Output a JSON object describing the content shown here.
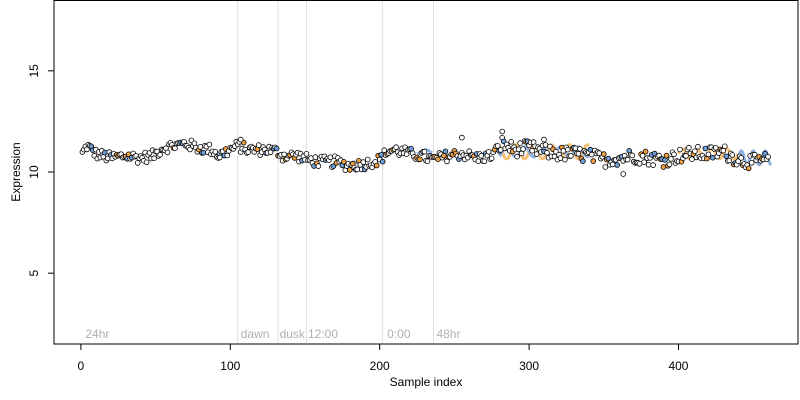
{
  "chart_data": {
    "type": "scatter",
    "title": "",
    "xlabel": "Sample index",
    "ylabel": "Expression",
    "xlim": [
      -18,
      480
    ],
    "ylim": [
      1.5,
      18.5
    ],
    "xticks": [
      0,
      100,
      200,
      300,
      400
    ],
    "yticks": [
      5,
      10,
      15
    ],
    "grid": false,
    "legend": "none",
    "colors": {
      "point_fill": "#ffffff",
      "point_stroke": "#000000",
      "orange_fill": "#f0a040",
      "blue_fill": "#6f9fd8",
      "vline": "#e0e0e0",
      "annotation": "#b0b0b0",
      "fit_orange": "#f5b561",
      "fit_blue": "#7fa6dc"
    },
    "vlines": [
      105,
      132,
      151,
      202,
      236
    ],
    "annotations": [
      {
        "label": "24hr",
        "x": 3
      },
      {
        "label": "dawn",
        "x": 107
      },
      {
        "label": "dusk",
        "x": 133
      },
      {
        "label": "12:00",
        "x": 152
      },
      {
        "label": "0:00",
        "x": 205
      },
      {
        "label": "48hr",
        "x": 238
      }
    ],
    "series": [
      {
        "type": "points",
        "anchors": [
          [
            1,
            10.9
          ],
          [
            4,
            11.3
          ],
          [
            10,
            10.9
          ],
          [
            20,
            10.7
          ],
          [
            30,
            10.8
          ],
          [
            40,
            10.7
          ],
          [
            48,
            10.8
          ],
          [
            55,
            11.2
          ],
          [
            62,
            11.3
          ],
          [
            70,
            11.4
          ],
          [
            78,
            11.2
          ],
          [
            88,
            11.1
          ],
          [
            92,
            10.8
          ],
          [
            100,
            11.1
          ],
          [
            105,
            11.3
          ],
          [
            112,
            11.1
          ],
          [
            125,
            11.1
          ],
          [
            132,
            11.0
          ],
          [
            135,
            10.8
          ],
          [
            145,
            10.8
          ],
          [
            152,
            10.6
          ],
          [
            160,
            10.5
          ],
          [
            170,
            10.5
          ],
          [
            180,
            10.3
          ],
          [
            190,
            10.4
          ],
          [
            200,
            10.6
          ],
          [
            205,
            11.0
          ],
          [
            210,
            11.1
          ],
          [
            220,
            10.9
          ],
          [
            228,
            10.8
          ],
          [
            236,
            10.6
          ],
          [
            245,
            10.8
          ],
          [
            255,
            10.9
          ],
          [
            265,
            10.7
          ],
          [
            275,
            10.8
          ],
          [
            282,
            11.4
          ],
          [
            290,
            11.1
          ],
          [
            300,
            11.2
          ],
          [
            310,
            11.0
          ],
          [
            320,
            10.9
          ],
          [
            330,
            10.9
          ],
          [
            340,
            10.8
          ],
          [
            350,
            10.6
          ],
          [
            360,
            10.7
          ],
          [
            370,
            10.8
          ],
          [
            380,
            10.7
          ],
          [
            390,
            10.6
          ],
          [
            400,
            10.8
          ],
          [
            410,
            10.9
          ],
          [
            420,
            10.9
          ],
          [
            430,
            11.0
          ],
          [
            440,
            10.6
          ],
          [
            450,
            10.5
          ],
          [
            460,
            10.6
          ]
        ],
        "n_points": 460,
        "jitter": 0.28,
        "highlights": [
          {
            "x": 255,
            "y": 11.7
          },
          {
            "x": 282,
            "y": 12.0
          },
          {
            "x": 363,
            "y": 9.9
          },
          {
            "x": 107,
            "y": 11.6
          },
          {
            "x": 310,
            "y": 11.6
          }
        ]
      }
    ],
    "fits": [
      {
        "color": "orange",
        "from": 280,
        "to": 340,
        "center": 11.0,
        "amp": 0.35,
        "period": 12
      },
      {
        "color": "blue",
        "from": 280,
        "to": 340,
        "center": 11.0,
        "amp": 0.25,
        "period": 12,
        "phase": 6
      },
      {
        "color": "orange",
        "from": 400,
        "to": 440,
        "center": 10.9,
        "amp": 0.25,
        "period": 10
      },
      {
        "color": "blue",
        "from": 440,
        "to": 462,
        "center": 10.7,
        "amp": 0.35,
        "period": 8
      },
      {
        "color": "blue",
        "from": 88,
        "to": 100,
        "center": 11.0,
        "amp": 0.1,
        "period": 12
      },
      {
        "color": "blue",
        "from": 178,
        "to": 190,
        "center": 10.4,
        "amp": 0.1,
        "period": 12
      },
      {
        "color": "blue",
        "from": 225,
        "to": 235,
        "center": 11.0,
        "amp": 0.1,
        "period": 12
      }
    ]
  }
}
